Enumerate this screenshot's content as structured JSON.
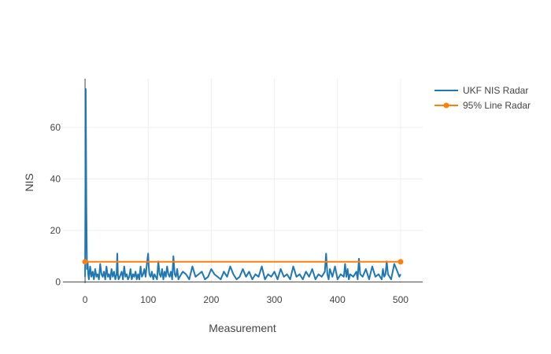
{
  "chart_data": {
    "type": "line",
    "title": "",
    "xlabel": "Measurement",
    "ylabel": "NIS",
    "xlim": [
      -35,
      535
    ],
    "ylim": [
      -0.5,
      79
    ],
    "x_ticks": [
      0,
      100,
      200,
      300,
      400,
      500
    ],
    "y_ticks": [
      0,
      20,
      40,
      60
    ],
    "grid": true,
    "legend_position": "top-right",
    "series": [
      {
        "name": "UKF NIS Radar",
        "color": "#1f77b4",
        "mode": "lines",
        "x": [
          0,
          1,
          2,
          3,
          4,
          5,
          6,
          8,
          10,
          12,
          14,
          16,
          18,
          20,
          22,
          24,
          26,
          28,
          30,
          32,
          34,
          36,
          38,
          40,
          42,
          44,
          46,
          48,
          50,
          51,
          52,
          53,
          55,
          58,
          60,
          62,
          64,
          66,
          68,
          70,
          72,
          74,
          76,
          78,
          80,
          82,
          84,
          86,
          88,
          90,
          92,
          94,
          96,
          98,
          100,
          101,
          102,
          104,
          106,
          108,
          110,
          112,
          114,
          116,
          118,
          120,
          122,
          124,
          126,
          128,
          130,
          132,
          134,
          136,
          138,
          140,
          142,
          144,
          146,
          148,
          150,
          155,
          160,
          165,
          170,
          175,
          180,
          185,
          190,
          195,
          200,
          205,
          210,
          215,
          220,
          225,
          230,
          235,
          240,
          245,
          250,
          255,
          260,
          265,
          270,
          275,
          280,
          285,
          290,
          295,
          300,
          305,
          310,
          315,
          320,
          325,
          330,
          335,
          340,
          345,
          350,
          355,
          360,
          365,
          370,
          375,
          380,
          382,
          384,
          386,
          388,
          392,
          396,
          400,
          405,
          410,
          412,
          414,
          416,
          418,
          420,
          425,
          430,
          432,
          434,
          436,
          440,
          445,
          450,
          455,
          460,
          465,
          470,
          472,
          474,
          476,
          478,
          480,
          485,
          490,
          495,
          498,
          500
        ],
        "y": [
          2,
          75,
          30,
          5,
          8,
          3,
          1,
          6,
          2,
          4,
          1,
          5,
          2,
          3,
          1,
          7,
          3,
          2,
          4,
          1,
          6,
          2,
          3,
          1,
          5,
          2,
          4,
          1,
          3,
          11,
          3,
          1,
          2,
          4,
          1,
          6,
          2,
          3,
          1,
          2,
          5,
          1,
          3,
          2,
          4,
          1,
          3,
          1,
          6,
          2,
          3,
          5,
          2,
          7,
          11,
          6,
          3,
          2,
          4,
          1,
          3,
          2,
          1,
          8,
          3,
          2,
          5,
          1,
          4,
          2,
          6,
          3,
          2,
          4,
          1,
          10,
          3,
          2,
          5,
          1,
          2,
          4,
          3,
          1,
          6,
          2,
          3,
          4,
          1,
          2,
          5,
          3,
          2,
          1,
          4,
          2,
          6,
          3,
          1,
          2,
          5,
          2,
          4,
          1,
          3,
          2,
          6,
          1,
          3,
          2,
          4,
          1,
          5,
          2,
          3,
          1,
          6,
          2,
          3,
          1,
          4,
          2,
          5,
          1,
          3,
          2,
          4,
          11,
          3,
          1,
          5,
          2,
          6,
          1,
          3,
          2,
          7,
          2,
          5,
          1,
          3,
          2,
          4,
          1,
          9,
          3,
          2,
          5,
          1,
          6,
          2,
          3,
          1,
          5,
          2,
          3,
          8,
          3,
          1,
          7,
          4,
          2,
          3
        ]
      },
      {
        "name": "95% Line Radar",
        "color": "#ff7f0e",
        "mode": "lines+markers",
        "x": [
          0,
          500
        ],
        "y": [
          7.815,
          7.815
        ]
      }
    ]
  }
}
